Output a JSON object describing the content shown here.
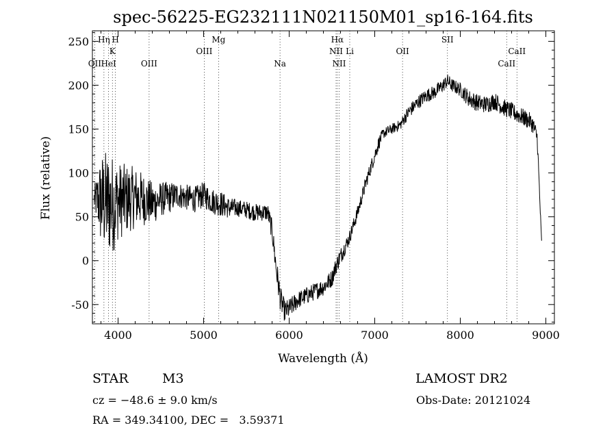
{
  "chart_data": {
    "type": "line",
    "title": "spec-56225-EG232111N021150M01_sp16-164.fits",
    "xlabel": "Wavelength (Å)",
    "ylabel": "Flux (relative)",
    "xlim": [
      3700,
      9100
    ],
    "ylim": [
      -72,
      262
    ],
    "xticks": [
      4000,
      5000,
      6000,
      7000,
      8000,
      9000
    ],
    "yticks": [
      -50,
      0,
      50,
      100,
      150,
      200,
      250
    ],
    "grid": false,
    "legend": "none",
    "line_color": "#000000",
    "lines": [
      {
        "label": "OII",
        "x": 3727,
        "row": 3
      },
      {
        "label": "Hη",
        "x": 3835,
        "row": 1
      },
      {
        "label": "HeI",
        "x": 3889,
        "row": 3
      },
      {
        "label": "K",
        "x": 3934,
        "row": 2
      },
      {
        "label": "H",
        "x": 3969,
        "row": 1
      },
      {
        "label": "OIII",
        "x": 4363,
        "row": 3
      },
      {
        "label": "OIII",
        "x": 5007,
        "row": 2
      },
      {
        "label": "Mg",
        "x": 5175,
        "row": 1
      },
      {
        "label": "Na",
        "x": 5893,
        "row": 3
      },
      {
        "label": "Hα",
        "x": 6563,
        "row": 1
      },
      {
        "label": "NII",
        "x": 6548,
        "row": 2
      },
      {
        "label": "NII",
        "x": 6584,
        "row": 3
      },
      {
        "label": "Li",
        "x": 6708,
        "row": 2
      },
      {
        "label": "OII",
        "x": 7325,
        "row": 2
      },
      {
        "label": "SII",
        "x": 7850,
        "row": 1
      },
      {
        "label": "CaII",
        "x": 8542,
        "row": 3
      },
      {
        "label": "CaII",
        "x": 8662,
        "row": 2
      }
    ],
    "series": [
      {
        "x": [
          3720,
          3760,
          3800,
          3850,
          3900,
          3950,
          4000,
          4100,
          4200,
          4300,
          4400,
          4500,
          4600,
          4700,
          4800,
          4900,
          5000,
          5100,
          5200,
          5300,
          5400,
          5500,
          5600,
          5700,
          5750,
          5800,
          5850,
          5900,
          5950,
          6000,
          6100,
          6200,
          6300,
          6400,
          6500,
          6550,
          6600,
          6700,
          6800,
          6900,
          7000,
          7050,
          7100,
          7200,
          7300,
          7400,
          7500,
          7600,
          7700,
          7800,
          7850,
          7900,
          8000,
          8100,
          8200,
          8300,
          8400,
          8500,
          8600,
          8700,
          8800,
          8850,
          8900,
          8950
        ],
        "y": [
          70,
          70,
          68,
          66,
          65,
          65,
          68,
          70,
          72,
          70,
          65,
          70,
          72,
          75,
          72,
          70,
          75,
          68,
          65,
          60,
          60,
          58,
          55,
          55,
          55,
          35,
          -10,
          -45,
          -58,
          -55,
          -45,
          -40,
          -35,
          -30,
          -20,
          -5,
          5,
          25,
          55,
          90,
          120,
          135,
          145,
          150,
          155,
          170,
          180,
          188,
          192,
          200,
          205,
          200,
          195,
          185,
          180,
          178,
          182,
          175,
          170,
          165,
          160,
          155,
          140,
          20
        ],
        "noise": [
          15,
          30,
          55,
          60,
          60,
          55,
          45,
          40,
          35,
          30,
          25,
          20,
          18,
          15,
          15,
          15,
          15,
          15,
          15,
          12,
          10,
          10,
          10,
          10,
          10,
          12,
          15,
          15,
          12,
          12,
          10,
          10,
          10,
          10,
          10,
          10,
          10,
          8,
          8,
          8,
          8,
          8,
          6,
          6,
          6,
          8,
          8,
          8,
          8,
          8,
          8,
          8,
          8,
          10,
          10,
          10,
          10,
          10,
          10,
          10,
          10,
          10,
          10,
          5
        ]
      }
    ]
  },
  "info": {
    "object_class": "STAR",
    "subclass": "M3",
    "survey": "LAMOST DR2",
    "redshift": "cz = −48.6 ± 9.0 km/s",
    "obs_date": "Obs-Date: 20121024",
    "coords": "RA = 349.34100, DEC =   3.59371"
  }
}
